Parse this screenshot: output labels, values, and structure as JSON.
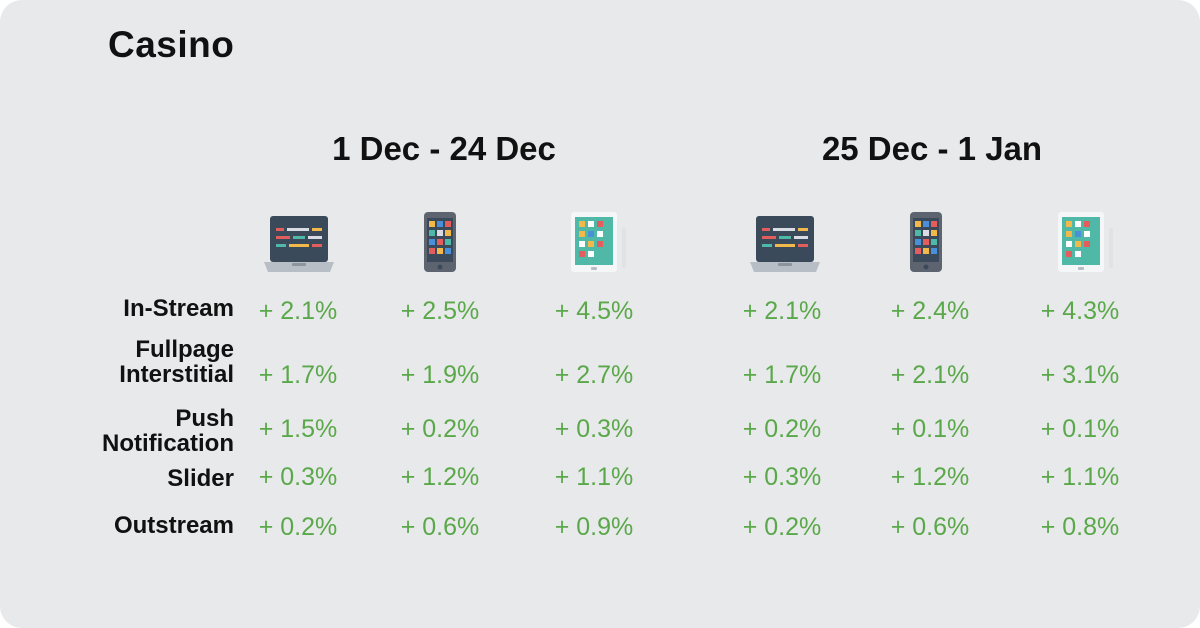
{
  "title": "Casino",
  "periods": [
    "1 Dec - 24 Dec",
    "25 Dec - 1 Jan"
  ],
  "devices": [
    "laptop-icon",
    "smartphone-icon",
    "tablet-icon"
  ],
  "colors": {
    "background": "#e8e9ea",
    "value": "#5aa84a",
    "text": "#111111"
  },
  "chart_data": {
    "type": "table",
    "title": "Casino",
    "columns": [
      "1 Dec - 24 Dec",
      "25 Dec - 1 Jan"
    ],
    "rows": [
      {
        "label": "In-Stream",
        "values": [
          [
            "+ 2.1%",
            "+ 2.5%",
            "+ 4.5%"
          ],
          [
            "+ 2.1%",
            "+ 2.4%",
            "+ 4.3%"
          ]
        ]
      },
      {
        "label": "Fullpage Interstitial",
        "values": [
          [
            "+ 1.7%",
            "+ 1.9%",
            "+ 2.7%"
          ],
          [
            "+ 1.7%",
            "+ 2.1%",
            "+ 3.1%"
          ]
        ]
      },
      {
        "label": "Push Notification",
        "values": [
          [
            "+ 1.5%",
            "+ 0.2%",
            "+ 0.3%"
          ],
          [
            "+ 0.2%",
            "+ 0.1%",
            "+ 0.1%"
          ]
        ]
      },
      {
        "label": "Slider",
        "values": [
          [
            "+ 0.3%",
            "+ 1.2%",
            "+ 1.1%"
          ],
          [
            "+ 0.3%",
            "+ 1.2%",
            "+ 1.1%"
          ]
        ]
      },
      {
        "label": "Outstream",
        "values": [
          [
            "+ 0.2%",
            "+ 0.6%",
            "+ 0.9%"
          ],
          [
            "+ 0.2%",
            "+ 0.6%",
            "+ 0.8%"
          ]
        ]
      }
    ]
  }
}
